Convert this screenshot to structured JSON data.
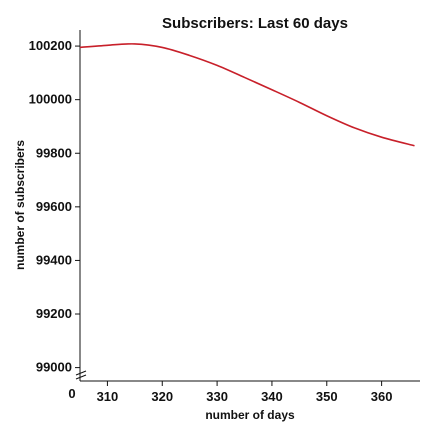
{
  "chart_data": {
    "type": "line",
    "title": "Subscribers: Last 60 days",
    "xlabel": "number of days",
    "ylabel": "number of subscribers",
    "x_origin_label": "0",
    "xlim": [
      305,
      367
    ],
    "ylim": [
      98950,
      100260
    ],
    "x_ticks": [
      310,
      320,
      330,
      340,
      350,
      360
    ],
    "y_ticks": [
      99000,
      99200,
      99400,
      99600,
      99800,
      100000,
      100200
    ],
    "axis_break": true,
    "grid": false,
    "series": [
      {
        "color": "#c8202a",
        "x": [
          305,
          310,
          315,
          320,
          325,
          330,
          335,
          340,
          345,
          350,
          355,
          360,
          366
        ],
        "y": [
          100195,
          100203,
          100208,
          100195,
          100165,
          100128,
          100083,
          100037,
          99990,
          99940,
          99895,
          99860,
          99828
        ]
      }
    ]
  }
}
